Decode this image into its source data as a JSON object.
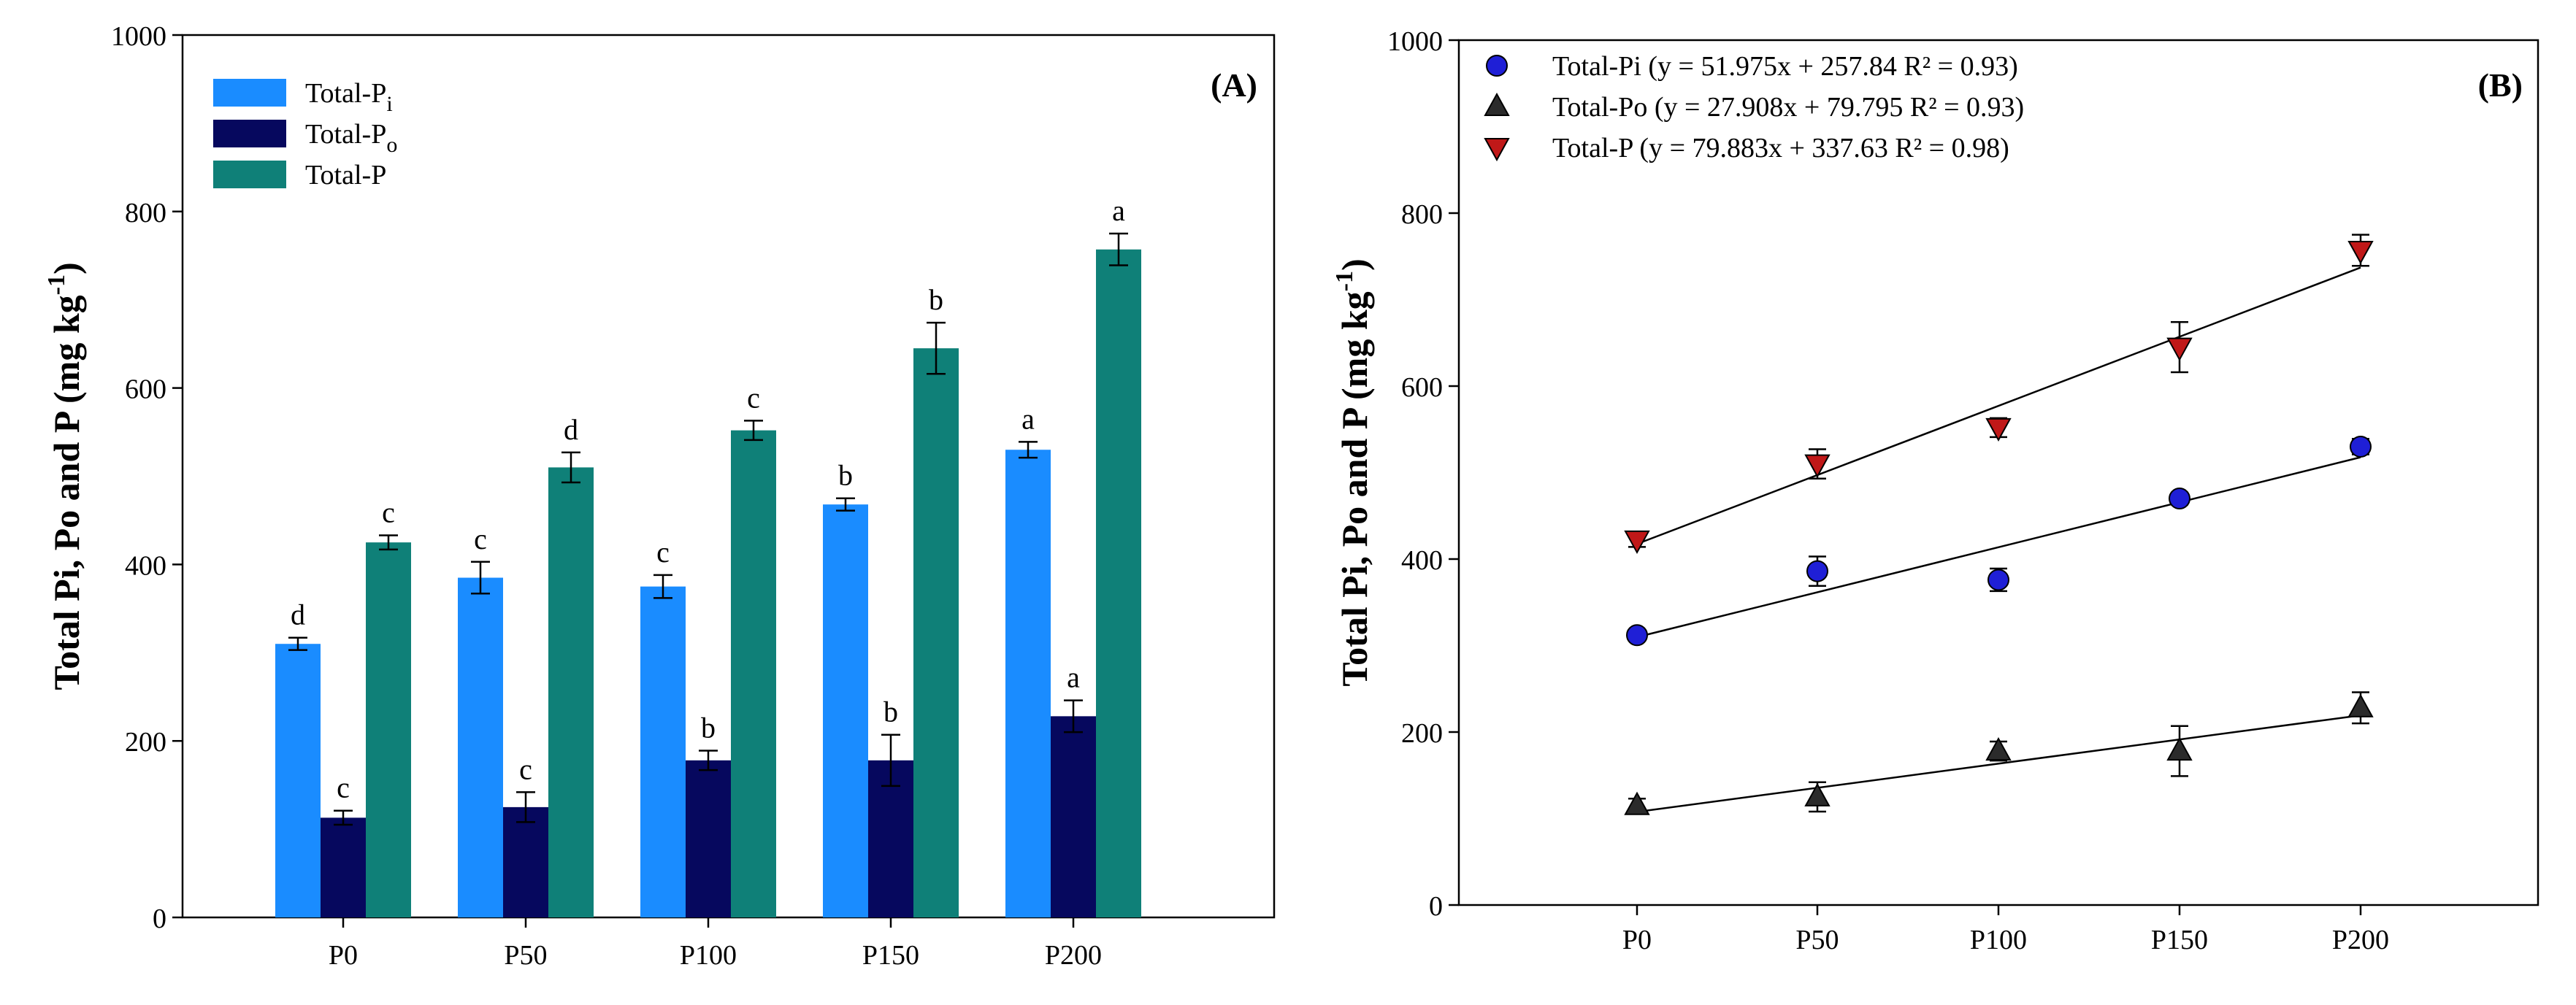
{
  "colors": {
    "total_pi_bar": "#1a8cff",
    "total_po_bar": "#06085e",
    "total_p_bar": "#0f8078",
    "pi_marker": "#1f1fd6",
    "po_marker": "#2b2b2b",
    "p_marker": "#c01818",
    "axis": "#000000"
  },
  "chart_data": [
    {
      "type": "bar",
      "panel_label": "(A)",
      "title": "",
      "ylabel": "Total Pi, Po and P (mg kg-1)",
      "ylabel_parts": {
        "main": "Total Pi, Po and P (mg kg",
        "sup": "-1",
        "tail": ")"
      },
      "xlabel": "",
      "ylim": [
        0,
        1000
      ],
      "yticks": [
        0,
        200,
        400,
        600,
        800,
        1000
      ],
      "grid": false,
      "legend_position": "top-left",
      "categories": [
        "P0",
        "P50",
        "P100",
        "P150",
        "P200"
      ],
      "series": [
        {
          "name": "Total-Pi",
          "legend": {
            "main": "Total-P",
            "sub": "i"
          },
          "color_key": "total_pi_bar",
          "values": [
            310,
            385,
            375,
            468,
            530
          ],
          "errors": [
            7,
            18,
            13,
            7,
            9
          ],
          "letters": [
            "d",
            "c",
            "c",
            "b",
            "a"
          ]
        },
        {
          "name": "Total-Po",
          "legend": {
            "main": "Total-P",
            "sub": "o"
          },
          "color_key": "total_po_bar",
          "values": [
            113,
            125,
            178,
            178,
            228
          ],
          "errors": [
            8,
            17,
            11,
            29,
            18
          ],
          "letters": [
            "c",
            "c",
            "b",
            "b",
            "a"
          ]
        },
        {
          "name": "Total-P",
          "legend": {
            "main": "Total-P",
            "sub": ""
          },
          "color_key": "total_p_bar",
          "values": [
            425,
            510,
            552,
            645,
            757
          ],
          "errors": [
            8,
            17,
            11,
            29,
            18
          ],
          "letters": [
            "c",
            "d",
            "c",
            "b",
            "a"
          ]
        }
      ]
    },
    {
      "type": "scatter",
      "panel_label": "(B)",
      "title": "",
      "ylabel": "Total Pi, Po and P (mg kg-1)",
      "ylabel_parts": {
        "main": "Total Pi, Po and P (mg kg",
        "sup": "-1",
        "tail": ")"
      },
      "xlabel": "",
      "ylim": [
        0,
        1000
      ],
      "yticks": [
        0,
        200,
        400,
        600,
        800,
        1000
      ],
      "grid": false,
      "legend_position": "top-left",
      "x": [
        "P0",
        "P50",
        "P100",
        "P150",
        "P200"
      ],
      "series": [
        {
          "name": "Total-Pi",
          "legend_text": "Total-Pi (y = 51.975x + 257.84 R² = 0.93)",
          "marker": "circle",
          "color_key": "pi_marker",
          "values": [
            312,
            386,
            376,
            470,
            530
          ],
          "errors": [
            6,
            17,
            13,
            7,
            9
          ],
          "fit": {
            "slope": 51.975,
            "intercept": 257.84,
            "r2": 0.93
          }
        },
        {
          "name": "Total-Po",
          "legend_text": "Total-Po  (y = 27.908x + 79.795 R² = 0.93)",
          "marker": "triangle-up",
          "color_key": "po_marker",
          "values": [
            115,
            125,
            178,
            178,
            228
          ],
          "errors": [
            8,
            17,
            11,
            29,
            18
          ],
          "fit": {
            "slope": 27.908,
            "intercept": 79.795,
            "r2": 0.93
          }
        },
        {
          "name": "Total-P",
          "legend_text": "Total-P (y = 79.883x + 337.63 R² = 0.98)",
          "marker": "triangle-down",
          "color_key": "p_marker",
          "values": [
            422,
            510,
            552,
            645,
            757
          ],
          "errors": [
            8,
            17,
            11,
            29,
            18
          ],
          "fit": {
            "slope": 79.883,
            "intercept": 337.63,
            "r2": 0.98
          }
        }
      ]
    }
  ]
}
